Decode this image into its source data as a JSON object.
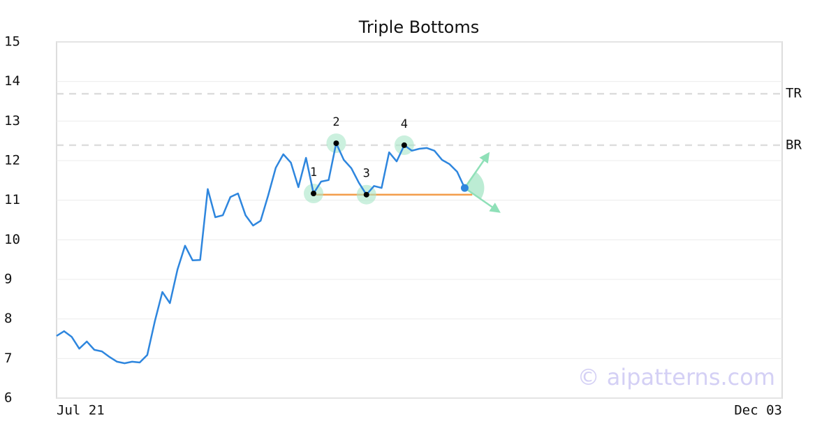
{
  "chart_data": {
    "type": "line",
    "title": "Triple Bottoms",
    "categories": [
      "Jul 21",
      null,
      null,
      null,
      null,
      null,
      null,
      null,
      null,
      null,
      null,
      null,
      null,
      null,
      null,
      null,
      null,
      null,
      null,
      null,
      null,
      null,
      null,
      null,
      null,
      null,
      null,
      null,
      null,
      null,
      null,
      null,
      null,
      null,
      null,
      null,
      null,
      null,
      null,
      null,
      null,
      null,
      null,
      null,
      null,
      null,
      null,
      null,
      null,
      null,
      null,
      null,
      null,
      null,
      null,
      null,
      null,
      null,
      null,
      null,
      null,
      null,
      null,
      null,
      null,
      null,
      null,
      null,
      null,
      null,
      null,
      null,
      null,
      null,
      null,
      null,
      null,
      null,
      null,
      null,
      null,
      null,
      null,
      null,
      null,
      null,
      null,
      null,
      null,
      null,
      null,
      null,
      null,
      null,
      null,
      null,
      "Dec 03"
    ],
    "values": [
      7.57,
      7.69,
      7.55,
      7.25,
      7.43,
      7.22,
      7.18,
      7.04,
      6.92,
      6.88,
      6.92,
      6.9,
      7.09,
      7.94,
      8.68,
      8.4,
      9.25,
      9.85,
      9.48,
      9.49,
      11.28,
      10.57,
      10.62,
      11.08,
      11.17,
      10.62,
      10.36,
      10.48,
      11.12,
      11.82,
      12.16,
      11.95,
      11.33,
      12.07,
      11.17,
      11.47,
      11.51,
      12.44,
      12.02,
      11.81,
      11.44,
      11.14,
      11.36,
      11.31,
      12.21,
      11.98,
      12.39,
      12.25,
      12.3,
      12.32,
      12.25,
      12.02,
      11.91,
      11.72,
      11.31,
      null,
      null,
      null,
      null,
      null,
      null,
      null,
      null,
      null,
      null,
      null,
      null,
      null,
      null,
      null,
      null,
      null,
      null,
      null,
      null,
      null,
      null,
      null,
      null,
      null,
      null,
      null,
      null,
      null,
      null,
      null,
      null,
      null,
      null,
      null,
      null,
      null,
      null,
      null,
      null,
      null,
      null
    ],
    "color": "#2e86de",
    "ylim": [
      6,
      15
    ],
    "yticks": [
      6,
      7,
      8,
      9,
      10,
      11,
      12,
      13,
      14,
      15
    ],
    "grid": true,
    "levels": [
      {
        "label": "TR",
        "value": 13.69
      },
      {
        "label": "BR",
        "value": 12.39
      }
    ],
    "neckline": {
      "value": 11.14,
      "from": 34,
      "to": 55,
      "color": "#f39c4a"
    },
    "pattern_points": [
      {
        "label": "1",
        "index": 34
      },
      {
        "label": "2",
        "index": 37
      },
      {
        "label": "3",
        "index": 41
      },
      {
        "label": "4",
        "index": 46
      }
    ],
    "watermark": "© aipatterns.com"
  }
}
